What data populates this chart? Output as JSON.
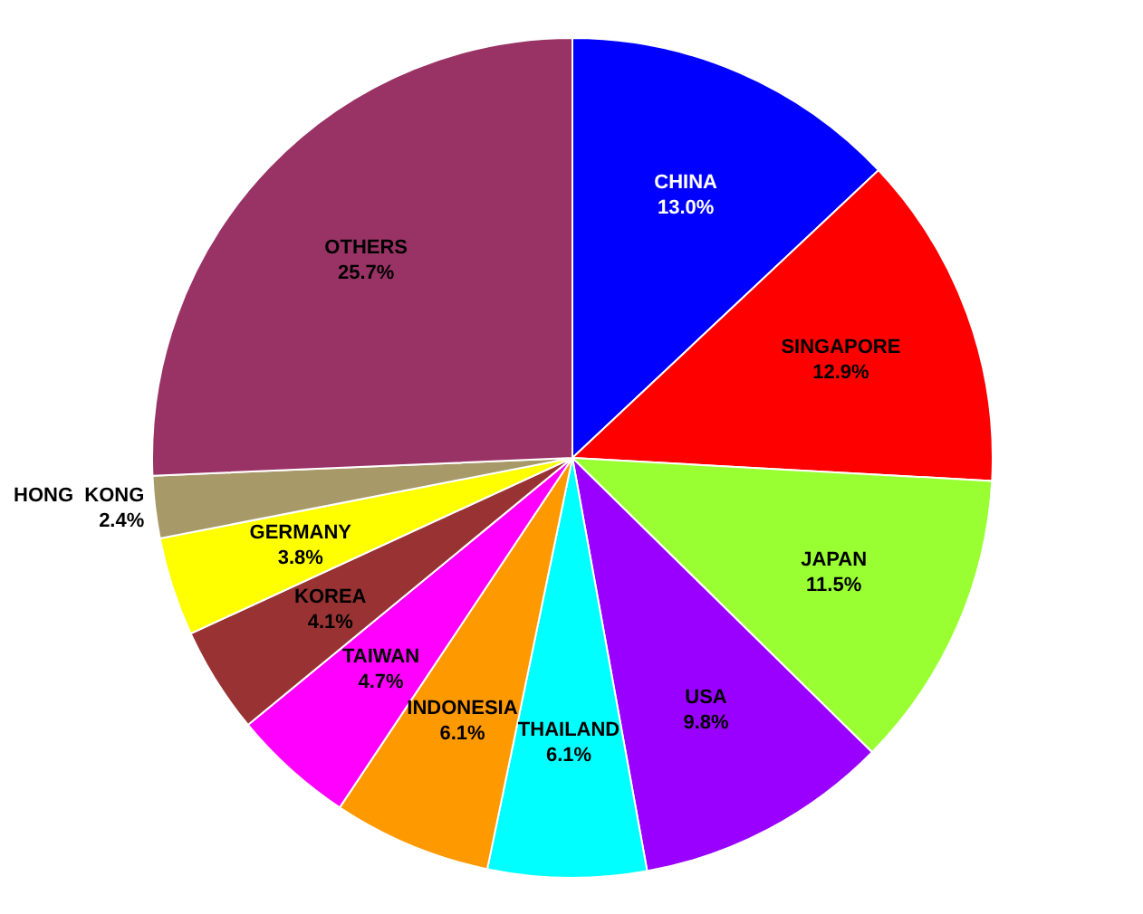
{
  "chart_data": {
    "type": "pie",
    "categories": [
      "CHINA",
      "SINGAPORE",
      "JAPAN",
      "USA",
      "THAILAND",
      "INDONESIA",
      "TAIWAN",
      "KOREA",
      "GERMANY",
      "HONG  KONG",
      "OTHERS"
    ],
    "values": [
      13.0,
      12.9,
      11.5,
      9.8,
      6.1,
      6.1,
      4.7,
      4.1,
      3.8,
      2.4,
      25.7
    ],
    "value_labels": [
      "13.0%",
      "12.9%",
      "11.5%",
      "9.8%",
      "6.1%",
      "6.1%",
      "4.7%",
      "4.1%",
      "3.8%",
      "2.4%",
      "25.7%"
    ],
    "colors": [
      "#0000ff",
      "#ff0000",
      "#99ff33",
      "#9900ff",
      "#00ffff",
      "#ff9900",
      "#ff00ff",
      "#993333",
      "#ffff00",
      "#a89968",
      "#993366"
    ],
    "legend": false
  }
}
